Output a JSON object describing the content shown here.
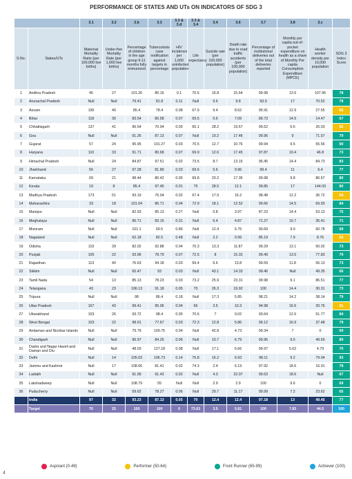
{
  "header": {
    "title": "PERFORMANCE OF STATES AND UTs ON INDICATORS OF SDG 3"
  },
  "table": {
    "indicators": [
      "3.1",
      "3.2",
      "3.b",
      "3.3",
      "3.3 & 3.d",
      "3.3 & 3.4",
      "3.4",
      "3.6",
      "3.7",
      "3.8",
      "3.c"
    ],
    "headers": [
      "S.No.",
      "States/UTs",
      "Maternal Mortality Ratio (per 100,000 live births)",
      "Under-five Mortality Rate (per 1,000 live births)",
      "Percentage of children in the age group 9-11 months fully immunized",
      "Tuberculosis case notification against targets in percentage",
      "HIV incidence per 1,000 uninfected population",
      "Life expectancy",
      "Suicide rate (per 100,000 population)",
      "Death rate due to road traffic accidents (per 100,000 population)",
      "Percentage of institutional deliveries out of the total deliveries reported",
      "Monthly per capita out-of-pocket expenditure on health as a share of Monthly Per capita Consumption Expenditure (MPCE)",
      "Health worker density per 10,000 population",
      "SDG 3 Index Score"
    ],
    "rows": [
      [
        1,
        "Andhra Pradesh",
        45,
        27,
        101.26,
        80.16,
        0.1,
        70.6,
        16.8,
        15.64,
        99.98,
        13.5,
        107.96,
        78
      ],
      [
        2,
        "Arunachal Pradesh",
        "Null",
        "Null",
        79.41,
        81.8,
        0.11,
        "Null",
        9.6,
        9.8,
        93.9,
        17,
        70.52,
        78
      ],
      [
        3,
        "Assam",
        195,
        40,
        85.4,
        78.4,
        0.08,
        67.9,
        9.4,
        8.62,
        95.91,
        12.9,
        27.55,
        60
      ],
      [
        4,
        "Bihar",
        118,
        30,
        83.54,
        80.58,
        0.07,
        69.5,
        0.6,
        7.09,
        89.73,
        14.5,
        14.47,
        67
      ],
      [
        5,
        "Chhattisgarh",
        137,
        41,
        96.54,
        70.04,
        0.05,
        65.1,
        28.2,
        19.67,
        99.52,
        6.6,
        26.03,
        56
      ],
      [
        6,
        "Goa",
        "Null",
        "Null",
        91.26,
        87.13,
        0.07,
        "Null",
        19.2,
        17.46,
        99.96,
        9,
        71.57,
        79
      ],
      [
        7,
        "Gujarat",
        57,
        24,
        95.95,
        101.27,
        0.03,
        70.5,
        12.7,
        10.76,
        99.94,
        9.5,
        55.56,
        90
      ],
      [
        8,
        "Haryana",
        110,
        33,
        91.71,
        80.68,
        0.07,
        69.9,
        12.6,
        17.45,
        97.87,
        10.4,
        46.8,
        73
      ],
      [
        9,
        "Himachal Pradesh",
        "Null",
        24,
        84.87,
        97.51,
        0.02,
        73.5,
        8.7,
        13.15,
        95.45,
        14.4,
        84.73,
        83
      ],
      [
        10,
        "Jharkhand",
        56,
        27,
        97.28,
        81.89,
        0.03,
        69.6,
        5.6,
        9.96,
        99.4,
        11,
        6.4,
        77
      ],
      [
        11,
        "Karnataka",
        69,
        21,
        98.44,
        80.42,
        0.05,
        69.8,
        20.2,
        17.36,
        99.98,
        9.8,
        86.67,
        80
      ],
      [
        12,
        "Kerala",
        19,
        8,
        85.4,
        97.45,
        0.01,
        75,
        28.5,
        12.1,
        99.85,
        17,
        144.03,
        80
      ],
      [
        13,
        "Madhya Pradesh",
        173,
        51,
        93.19,
        76.04,
        0.02,
        67.4,
        17.9,
        16.2,
        98.48,
        12.2,
        36.72,
        54
      ],
      [
        14,
        "Maharashtra",
        33,
        18,
        101.04,
        86.71,
        0.04,
        72.9,
        18.1,
        12.52,
        99.66,
        14.5,
        69.93,
        84
      ],
      [
        15,
        "Manipur",
        "Null",
        "Null",
        82.93,
        85.13,
        0.27,
        "Null",
        0.8,
        3.97,
        87.23,
        14.4,
        53.13,
        75
      ],
      [
        16,
        "Meghalaya",
        "Null",
        "Null",
        96.71,
        83.15,
        0.31,
        "Null",
        6.4,
        4.87,
        71.27,
        10.7,
        35.41,
        71
      ],
      [
        17,
        "Mizoram",
        "Null",
        "Null",
        101.1,
        69.5,
        0.86,
        "Null",
        12.4,
        6.75,
        90.69,
        9.9,
        60.78,
        69
      ],
      [
        18,
        "Nagaland",
        "Null",
        "Null",
        62.18,
        82.5,
        0.48,
        "Null",
        2.2,
        0.99,
        85.19,
        7.9,
        8.76,
        63
      ],
      [
        19,
        "Odisha",
        119,
        39,
        82.02,
        92.88,
        0.04,
        70.3,
        13.3,
        11.87,
        99.29,
        13.1,
        50.02,
        73
      ],
      [
        20,
        "Punjab",
        105,
        22,
        93.96,
        78.79,
        0.07,
        72.5,
        8,
        15.32,
        99.49,
        13.5,
        77.83,
        79
      ],
      [
        21,
        "Rajasthan",
        113,
        40,
        76.63,
        94.18,
        0.03,
        69.4,
        6.6,
        13.8,
        99.59,
        11.8,
        56.13,
        73
      ],
      [
        22,
        "Sikkim",
        "Null",
        "Null",
        65.47,
        93,
        0.03,
        "Null",
        43.1,
        14.33,
        99.46,
        "Null",
        49.35,
        66
      ],
      [
        23,
        "Tamil Nadu",
        54,
        13,
        85.13,
        78.23,
        0.03,
        73.2,
        25.9,
        23.31,
        99.98,
        9.1,
        86.51,
        77
      ],
      [
        24,
        "Telangana",
        43,
        23,
        106.13,
        91.18,
        0.05,
        70,
        26.3,
        19.92,
        100,
        14.4,
        30.31,
        73
      ],
      [
        25,
        "Tripura",
        "Null",
        "Null",
        98,
        86.4,
        0.18,
        "Null",
        17.3,
        5.85,
        98.21,
        14.2,
        38.14,
        79
      ],
      [
        26,
        "Uttar Pradesh",
        167,
        43,
        99.41,
        95.06,
        0.04,
        66,
        3.5,
        10.3,
        94.98,
        16.6,
        20.76,
        51
      ],
      [
        27,
        "Uttarakhand",
        103,
        26,
        93.72,
        98.4,
        0.05,
        70.6,
        7,
        9.02,
        93.64,
        12.5,
        51.77,
        84
      ],
      [
        28,
        "West Bengal",
        103,
        22,
        98.01,
        77.67,
        0.03,
        72.3,
        12.8,
        5.86,
        99.12,
        16.9,
        37.48,
        79
      ],
      [
        29,
        "Andaman and Nicobar Islands",
        "Null",
        "Null",
        79.79,
        100.75,
        0.04,
        "Null",
        42.8,
        4.73,
        99.34,
        7,
        0,
        69
      ],
      [
        30,
        "Chandigarh",
        "Null",
        "Null",
        96.97,
        84.25,
        0.06,
        "Null",
        10.7,
        6.79,
        99.96,
        9.5,
        49.69,
        89
      ],
      [
        31,
        "Dadra and Nagar Haveli and Daman and Diu",
        "Null",
        "Null",
        48.03,
        127.18,
        0.08,
        "Null",
        17.1,
        6.66,
        99.97,
        5.62,
        4.79,
        70
      ],
      [
        32,
        "Delhi",
        "Null",
        14,
        105.03,
        106.73,
        0.14,
        75.8,
        16.2,
        6.93,
        98.11,
        9.2,
        79.04,
        93
      ],
      [
        33,
        "Jammu and Kashmir",
        "Null",
        17,
        108.66,
        81.41,
        0.02,
        74.3,
        2.4,
        6.19,
        97.92,
        18.6,
        16.91,
        78
      ],
      [
        34,
        "Ladakh",
        "Null",
        "Null",
        91.99,
        91.43,
        0.02,
        "Null",
        4.3,
        22.07,
        99.63,
        18.6,
        "Null",
        67
      ],
      [
        35,
        "Lakshadweep",
        "Null",
        "Null",
        108.79,
        55,
        "Null",
        "Null",
        2.9,
        2.9,
        100,
        9.6,
        0,
        69
      ],
      [
        36,
        "Puducherry",
        "Null",
        "Null",
        59.62,
        78.27,
        0.06,
        "Null",
        29.7,
        11.17,
        99.99,
        7.2,
        23.62,
        65
      ]
    ],
    "summary_rows": [
      {
        "name": "India",
        "values": [
          97,
          32,
          93.23,
          87.13,
          0.05,
          70,
          12.4,
          12.4,
          97.18,
          13,
          49.45,
          77
        ]
      },
      {
        "name": "Target",
        "values": [
          70,
          25,
          100,
          100,
          0,
          73.63,
          3.5,
          5.81,
          100,
          7.83,
          44.5,
          100
        ]
      }
    ]
  },
  "legend": [
    {
      "label": "Aspirant (0-49)",
      "color": "#e2204f"
    },
    {
      "label": "Performer (50-64)",
      "color": "#f4c20d"
    },
    {
      "label": "Front Runner (65-99)",
      "color": "#0aa88f"
    },
    {
      "label": "Achiever (100)",
      "color": "#20a4dc"
    }
  ],
  "page_number": "4"
}
